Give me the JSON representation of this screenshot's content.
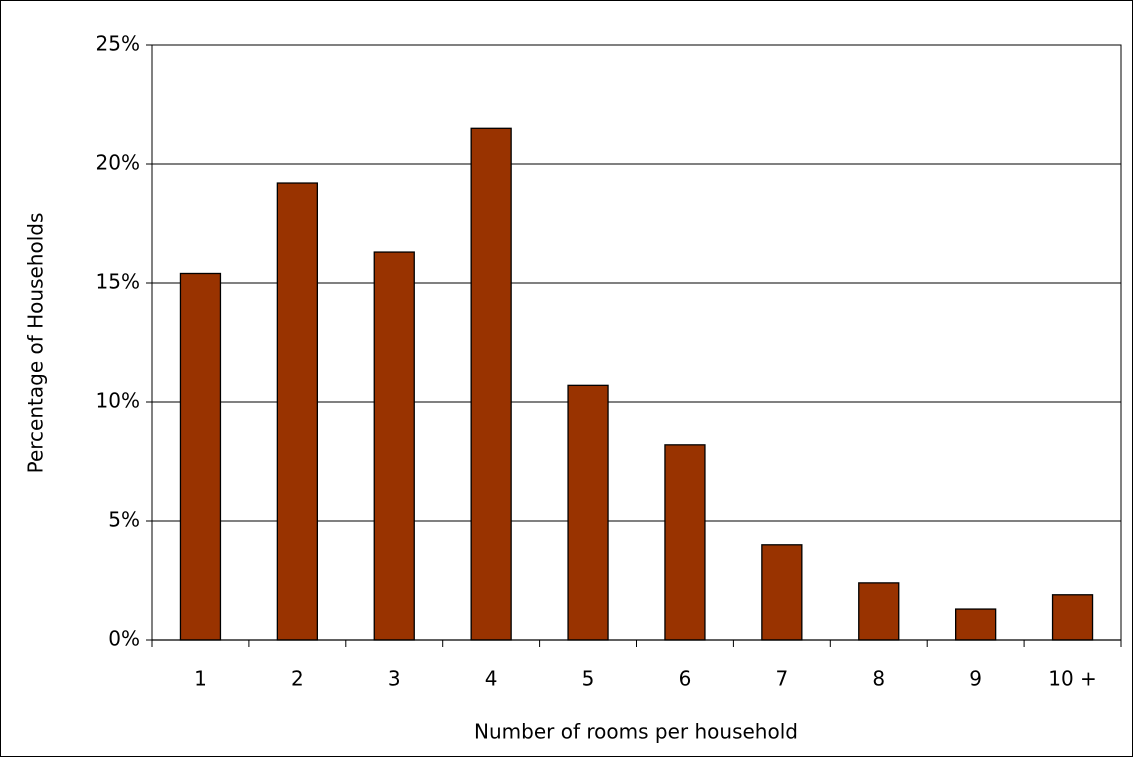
{
  "chart_data": {
    "type": "bar",
    "x_label": "Number of rooms per household",
    "y_label": "Percentage of Households",
    "categories": [
      "1",
      "2",
      "3",
      "4",
      "5",
      "6",
      "7",
      "8",
      "9",
      "10 +"
    ],
    "values": [
      15.4,
      19.2,
      16.3,
      21.5,
      10.7,
      8.2,
      4.0,
      2.4,
      1.3,
      1.9
    ],
    "color": "#993300",
    "ylim": [
      0,
      25
    ],
    "yticks": [
      {
        "value": 0,
        "label": "0%"
      },
      {
        "value": 5,
        "label": "5%"
      },
      {
        "value": 10,
        "label": "10%"
      },
      {
        "value": 15,
        "label": "15%"
      },
      {
        "value": 20,
        "label": "20%"
      },
      {
        "value": 25,
        "label": "25%"
      }
    ],
    "grid": true
  }
}
